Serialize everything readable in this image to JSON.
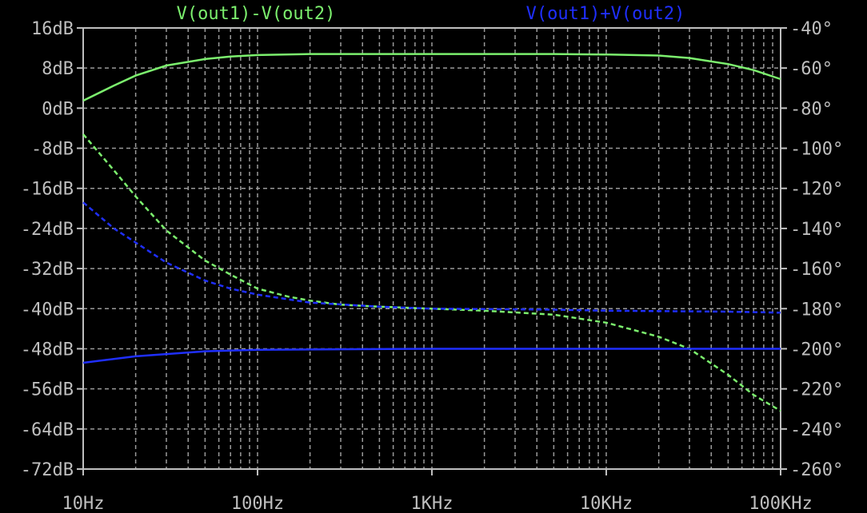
{
  "chart_data": {
    "type": "line",
    "x_scale": "log",
    "grid": true,
    "x_ticks": [
      "10Hz",
      "100Hz",
      "1KHz",
      "10KHz",
      "100KHz"
    ],
    "xlim_hz": [
      10,
      100000
    ],
    "y_left_ticks": [
      "16dB",
      "8dB",
      "0dB",
      "-8dB",
      "-16dB",
      "-24dB",
      "-32dB",
      "-40dB",
      "-48dB",
      "-56dB",
      "-64dB",
      "-72dB"
    ],
    "y_left_lim_db": [
      -72,
      16
    ],
    "y_right_ticks": [
      "-40°",
      "-60°",
      "-80°",
      "-100°",
      "-120°",
      "-140°",
      "-160°",
      "-180°",
      "-200°",
      "-220°",
      "-240°",
      "-260°"
    ],
    "y_right_lim_deg": [
      -260,
      -40
    ],
    "series": [
      {
        "name": "V(out1)-V(out2)",
        "color": "#7cf06e",
        "magnitude_db": {
          "x": [
            10,
            15,
            20,
            30,
            50,
            70,
            100,
            200,
            500,
            1000,
            2000,
            5000,
            10000,
            20000,
            30000,
            50000,
            70000,
            100000
          ],
          "y": [
            1.5,
            4.5,
            6.5,
            8.5,
            9.8,
            10.3,
            10.6,
            10.8,
            10.8,
            10.8,
            10.8,
            10.8,
            10.7,
            10.5,
            10.0,
            8.8,
            7.6,
            5.8
          ]
        },
        "phase_deg": {
          "x": [
            10,
            15,
            20,
            30,
            50,
            70,
            100,
            150,
            200,
            300,
            500,
            700,
            1000,
            2000,
            5000,
            10000,
            20000,
            30000,
            50000,
            70000,
            100000
          ],
          "y": [
            -93,
            -111,
            -124,
            -141,
            -156,
            -163,
            -170,
            -174,
            -176,
            -178,
            -179,
            -179.5,
            -180,
            -181,
            -183,
            -187,
            -194,
            -200,
            -213,
            -223,
            -231
          ]
        }
      },
      {
        "name": "V(out1)+V(out2)",
        "color": "#1f2fff",
        "magnitude_db": {
          "x": [
            10,
            20,
            50,
            100,
            1000,
            10000,
            100000
          ],
          "y": [
            -50.8,
            -49.5,
            -48.5,
            -48.2,
            -48.0,
            -48.0,
            -48.0
          ]
        },
        "phase_deg": {
          "x": [
            10,
            15,
            20,
            30,
            50,
            70,
            100,
            200,
            500,
            1000,
            5000,
            10000,
            50000,
            100000
          ],
          "y": [
            -127,
            -140,
            -147,
            -157,
            -166,
            -170,
            -173,
            -177,
            -179,
            -180,
            -180.5,
            -181,
            -181.5,
            -182
          ]
        }
      }
    ]
  }
}
